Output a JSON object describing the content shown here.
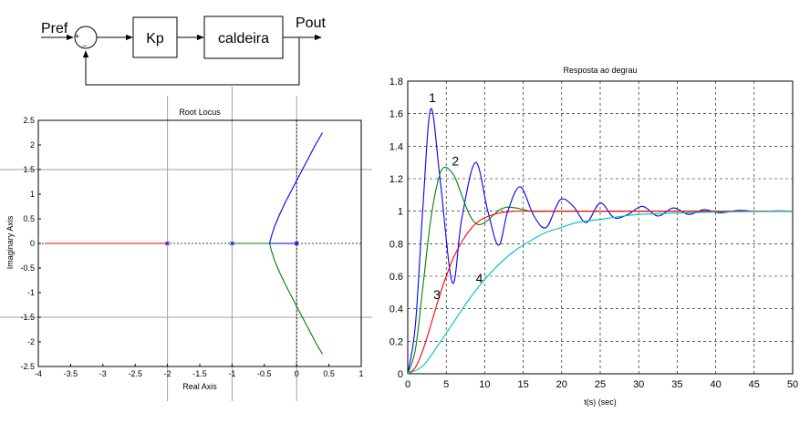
{
  "diagram": {
    "input_label": "Pref",
    "output_label": "Pout",
    "sum_plus": "+",
    "sum_minus": "−",
    "gain_block": "Kp",
    "plant_block": "caldeira"
  },
  "chart_data": [
    {
      "type": "line",
      "title": "Root Locus",
      "xlabel": "Real Axis",
      "ylabel": "Imaginary Axis",
      "xlim": [
        -4,
        1
      ],
      "ylim": [
        -2.5,
        2.5
      ],
      "xticks": [
        -4,
        -3.5,
        -3,
        -2.5,
        -2,
        -1.5,
        -1,
        -0.5,
        0,
        0.5,
        1
      ],
      "xtick_labels": [
        "-4",
        "-3.5",
        "-3",
        "-2.5",
        "-2",
        "-1.5",
        "-1",
        "-0.5",
        "0",
        "0.5",
        "1"
      ],
      "yticks": [
        2.5,
        2,
        1.5,
        1,
        0.5,
        0,
        -0.5,
        -1,
        -1.5,
        -2,
        -2.5
      ],
      "ytick_labels": [
        "2.5",
        "2",
        "1.5",
        "1",
        "0.5",
        "0",
        "-0.5",
        "-1",
        "-1.5",
        "-2",
        "-2.5"
      ],
      "grid": false,
      "poles": [
        [
          -2,
          0
        ],
        [
          -1,
          0
        ],
        [
          0,
          0
        ]
      ],
      "series": [
        {
          "color": "#ff0000",
          "points": [
            [
              -2,
              0
            ],
            [
              -2.4,
              0
            ],
            [
              -3,
              0
            ],
            [
              -3.5,
              0
            ],
            [
              -3.9,
              0
            ]
          ]
        },
        {
          "color": "#0000ff",
          "points": [
            [
              0,
              0
            ],
            [
              -0.2,
              0
            ],
            [
              -0.42,
              0
            ]
          ]
        },
        {
          "color": "#008000",
          "points": [
            [
              -1,
              0
            ],
            [
              -0.7,
              0
            ],
            [
              -0.42,
              0
            ]
          ]
        },
        {
          "color": "#0000ff",
          "points": [
            [
              -0.42,
              0
            ],
            [
              -0.39,
              0.15
            ],
            [
              -0.34,
              0.35
            ],
            [
              -0.26,
              0.6
            ],
            [
              -0.17,
              0.85
            ],
            [
              -0.05,
              1.15
            ],
            [
              0.05,
              1.4
            ],
            [
              0.17,
              1.7
            ],
            [
              0.29,
              2.0
            ],
            [
              0.4,
              2.25
            ]
          ]
        },
        {
          "color": "#008000",
          "points": [
            [
              -0.42,
              0
            ],
            [
              -0.39,
              -0.15
            ],
            [
              -0.34,
              -0.35
            ],
            [
              -0.26,
              -0.6
            ],
            [
              -0.17,
              -0.85
            ],
            [
              -0.05,
              -1.15
            ],
            [
              0.05,
              -1.4
            ],
            [
              0.17,
              -1.7
            ],
            [
              0.29,
              -2.0
            ],
            [
              0.4,
              -2.25
            ]
          ]
        }
      ]
    },
    {
      "type": "line",
      "title": "Resposta ao degrau",
      "xlabel": "t(s) (sec)",
      "ylabel": "",
      "xlim": [
        0,
        50
      ],
      "ylim": [
        0,
        1.8
      ],
      "xticks": [
        0,
        5,
        10,
        15,
        20,
        25,
        30,
        35,
        40,
        45,
        50
      ],
      "xtick_labels": [
        "0",
        "5",
        "10",
        "15",
        "20",
        "25",
        "30",
        "35",
        "40",
        "45",
        "50"
      ],
      "yticks": [
        0,
        0.2,
        0.4,
        0.6,
        0.8,
        1,
        1.2,
        1.4,
        1.6,
        1.8
      ],
      "ytick_labels": [
        "0",
        "0.2",
        "0.4",
        "0.6",
        "0.8",
        "1",
        "1.2",
        "1.4",
        "1.6",
        "1.8"
      ],
      "grid": true,
      "series": [
        {
          "name": "1",
          "color": "#0000ff",
          "label_at": [
            3.2,
            1.67
          ],
          "x": [
            0,
            1,
            2,
            3,
            4.2,
            5.8,
            7,
            8.8,
            10.4,
            11.8,
            13,
            14.6,
            16.4,
            18,
            19.8,
            21.5,
            23.2,
            25,
            26.8,
            28.6,
            30.5,
            32.5,
            34.5,
            36.5,
            38.5,
            40.5,
            43,
            45.5,
            48,
            50
          ],
          "y": [
            0,
            0.3,
            1.05,
            1.63,
            1.2,
            0.56,
            0.95,
            1.3,
            1.0,
            0.79,
            1.0,
            1.15,
            0.97,
            0.9,
            1.07,
            1.03,
            0.93,
            1.05,
            0.96,
            0.98,
            1.03,
            0.97,
            1.02,
            0.98,
            1.01,
            0.99,
            1.005,
            0.998,
            1.002,
            1.0
          ]
        },
        {
          "name": "2",
          "color": "#008000",
          "label_at": [
            6.2,
            1.28
          ],
          "x": [
            0,
            1,
            2,
            3,
            4,
            4.8,
            6,
            7,
            8,
            9,
            10,
            11,
            12,
            13,
            14,
            15,
            16,
            18,
            20,
            25,
            30,
            35,
            40,
            45,
            50
          ],
          "y": [
            0,
            0.15,
            0.55,
            0.95,
            1.2,
            1.27,
            1.22,
            1.1,
            0.98,
            0.92,
            0.93,
            0.97,
            1.01,
            1.025,
            1.02,
            1.01,
            1.0,
            1.0,
            1.0,
            1.0,
            1.0,
            1.0,
            1.0,
            1.0,
            1.0
          ]
        },
        {
          "name": "3",
          "color": "#ff0000",
          "label_at": [
            3.8,
            0.46
          ],
          "x": [
            0,
            1,
            2,
            3,
            4,
            5,
            6,
            7,
            8,
            9,
            10,
            12,
            14,
            16,
            18,
            20,
            25,
            30,
            35,
            40,
            45,
            50
          ],
          "y": [
            0,
            0.04,
            0.15,
            0.3,
            0.46,
            0.6,
            0.72,
            0.81,
            0.88,
            0.93,
            0.96,
            0.99,
            1.0,
            1.0,
            1.0,
            1.0,
            1.0,
            1.0,
            1.0,
            1.0,
            1.0,
            1.0
          ]
        },
        {
          "name": "4",
          "color": "#00bfbf",
          "label_at": [
            9.3,
            0.56
          ],
          "x": [
            0,
            2,
            4,
            6,
            8,
            10,
            12,
            14,
            16,
            18,
            20,
            22,
            25,
            28,
            30,
            33,
            36,
            40,
            45,
            50
          ],
          "y": [
            0,
            0.05,
            0.18,
            0.32,
            0.46,
            0.58,
            0.68,
            0.76,
            0.82,
            0.87,
            0.9,
            0.93,
            0.95,
            0.97,
            0.98,
            0.985,
            0.99,
            0.995,
            0.998,
            1.0
          ]
        }
      ]
    }
  ]
}
